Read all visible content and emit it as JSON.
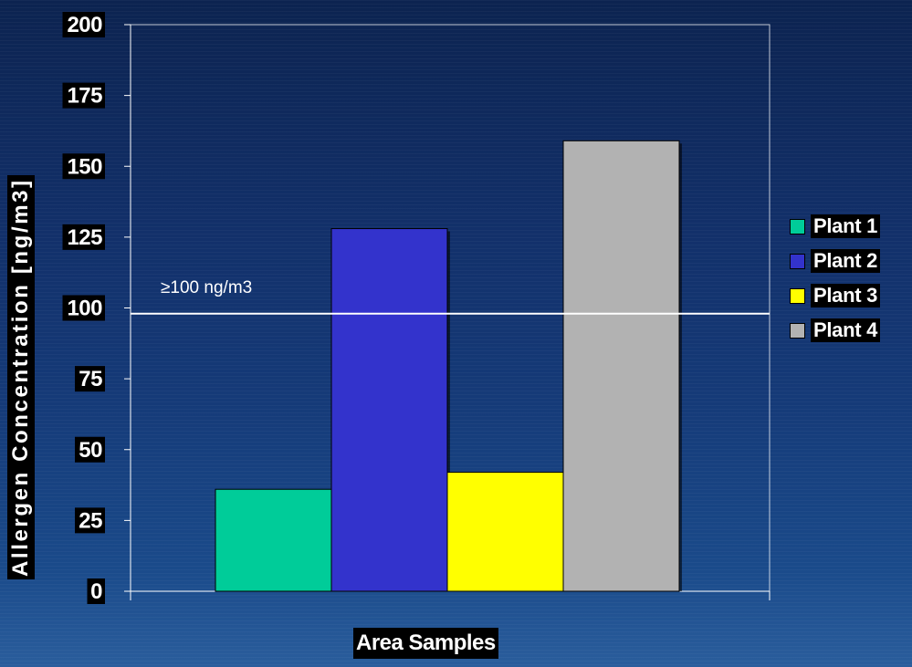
{
  "chart_data": {
    "type": "bar",
    "title": "",
    "xlabel": "Area Samples",
    "ylabel": "Allergen Concentration [ng/m3]",
    "ylim": [
      0,
      200
    ],
    "yticks": [
      "0",
      "25",
      "50",
      "75",
      "100",
      "125",
      "150",
      "175",
      "200"
    ],
    "categories": [
      "Plant 1",
      "Plant 2",
      "Plant 3",
      "Plant 4"
    ],
    "values": [
      36,
      128,
      42,
      159
    ],
    "colors": [
      "#00cc99",
      "#3333cc",
      "#ffff00",
      "#b2b2b2"
    ],
    "reference_line": {
      "value": 98,
      "label": "≥100 ng/m3",
      "color": "#ffffff"
    },
    "legend": {
      "placement": "right"
    },
    "grid": false
  }
}
